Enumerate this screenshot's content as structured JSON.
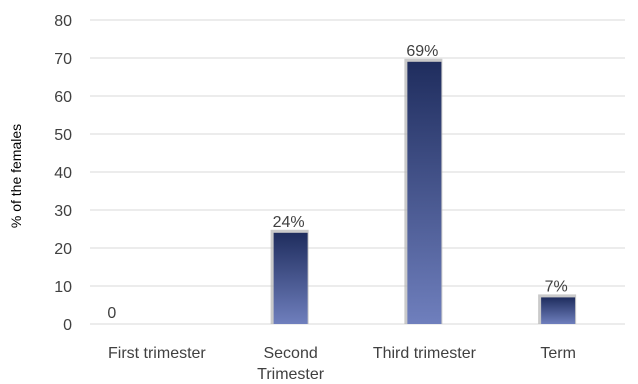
{
  "chart_data": {
    "type": "bar",
    "categories": [
      "First trimester",
      "Second Trimester",
      "Third trimester",
      "Term"
    ],
    "values": [
      0,
      24,
      69,
      7
    ],
    "data_labels": [
      "0",
      "24%",
      "69%",
      "7%"
    ],
    "ylabel": "% of the females",
    "xlabel": "",
    "ylim": [
      0,
      80
    ],
    "yticks": [
      0,
      10,
      20,
      30,
      40,
      50,
      60,
      70,
      80
    ],
    "grid": true,
    "legend": "none",
    "colors": {
      "bar_top": "#1f2d5e",
      "bar_bottom": "#6f7fbd",
      "bar_shadow": "#b3b3b3",
      "grid": "#d9d9d9",
      "text": "#404040"
    }
  }
}
